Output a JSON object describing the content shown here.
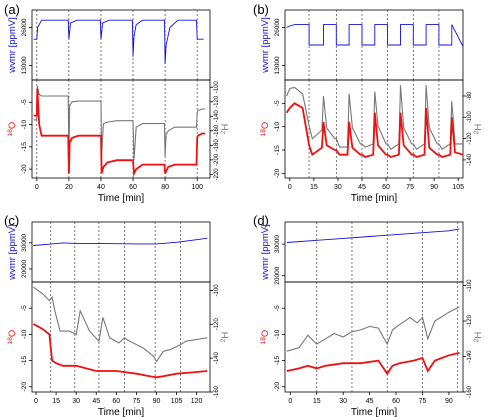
{
  "colors": {
    "wvmr": "#1010e0",
    "d18O": "#ee1010",
    "d2H": "#777777",
    "axis": "#000000",
    "dashed": "#444444"
  },
  "chart_data": [
    {
      "panel_label": "(a)",
      "type": "line",
      "xlabel": "Time [min]",
      "xlim": [
        -3,
        108
      ],
      "xticks": [
        0,
        20,
        40,
        60,
        80,
        100
      ],
      "xtick_labels": [
        "0",
        "20",
        "40",
        "60",
        "80",
        "100"
      ],
      "vlines": [
        0,
        20,
        40,
        60,
        80,
        100
      ],
      "top": {
        "ylabel": "wvmr [ppmV]",
        "ylim": [
          8000,
          32000
        ],
        "yticks": [
          13000,
          26000
        ],
        "ytick_labels": [
          "13000",
          "26000"
        ],
        "series": [
          {
            "x": [
              -2,
              0,
              0.5,
              3,
              8,
              19.6,
              20,
              21,
              25,
              39.6,
              40,
              41,
              45,
              59.6,
              60,
              60.6,
              62,
              66,
              79.6,
              80,
              80.6,
              83,
              88,
              99.6,
              100,
              104
            ],
            "y": [
              22000,
              22000,
              26000,
              28500,
              28500,
              28500,
              22000,
              27500,
              28500,
              28500,
              22000,
              27500,
              28500,
              28500,
              16000,
              23000,
              27000,
              28500,
              28500,
              13500,
              20000,
              26000,
              28500,
              28500,
              22000,
              22000
            ]
          }
        ]
      },
      "bottom": {
        "ylim": [
          -22,
          0
        ],
        "yticks": [
          -5,
          -10,
          -15,
          -20
        ],
        "ytick_labels": [
          "-5",
          "-10",
          "-15",
          "-20"
        ],
        "y2lim": [
          -225,
          -90
        ],
        "y2ticks": [
          -100,
          -120,
          -140,
          -160,
          -180,
          -200,
          -220
        ],
        "y2tick_labels": [
          "-100",
          "-120",
          "-140",
          "-160",
          "-180",
          "-200",
          "-220"
        ],
        "series": [
          {
            "name": "",
            "axis": "left",
            "color_key": "d18O",
            "x": [
              -2,
              0,
              0.3,
              1.5,
              3,
              6,
              19.6,
              20,
              20.5,
              22,
              26,
              39.6,
              40,
              40.4,
              41.5,
              44,
              50,
              59.6,
              60,
              60.6,
              62,
              66,
              79.6,
              80,
              80.6,
              82,
              86,
              99.6,
              100,
              100.5,
              103,
              105
            ],
            "y": [
              -8,
              -8,
              -2,
              -10,
              -12.5,
              -12.5,
              -12.5,
              -21,
              -14,
              -13,
              -12.5,
              -12.5,
              -12.5,
              -21,
              -19.5,
              -18.5,
              -18,
              -18,
              -18,
              -21,
              -20,
              -19,
              -19,
              -21,
              -20.5,
              -19.5,
              -19,
              -19,
              -13,
              -12.5,
              -12,
              -12
            ]
          },
          {
            "name": "",
            "axis": "right",
            "color_key": "d2H",
            "x": [
              -2,
              0,
              0.3,
              1.5,
              3,
              6,
              19.6,
              20,
              20.5,
              22,
              26,
              39.6,
              40,
              40.4,
              41.5,
              44,
              50,
              59.6,
              60,
              60.6,
              62,
              66,
              79.6,
              80,
              80.6,
              82,
              86,
              99.6,
              100,
              100.5,
              103,
              105
            ],
            "y": [
              -145,
              -145,
              -98,
              -110,
              -112,
              -112,
              -112,
              -200,
              -125,
              -120,
              -119,
              -119,
              -119,
              -195,
              -150,
              -148,
              -146,
              -146,
              -146,
              -200,
              -155,
              -150,
              -150,
              -195,
              -165,
              -160,
              -155,
              -155,
              -135,
              -132,
              -130,
              -130
            ]
          }
        ]
      }
    },
    {
      "panel_label": "(b)",
      "type": "line",
      "xlabel": "Time [min]",
      "xlim": [
        -3,
        108
      ],
      "xticks": [
        0,
        15,
        30,
        45,
        60,
        75,
        90,
        105
      ],
      "xtick_labels": [
        "0",
        "15",
        "30",
        "45",
        "60",
        "75",
        "90",
        "105"
      ],
      "vlines": [
        12,
        29,
        45,
        61,
        77,
        93
      ],
      "top": {
        "ylabel": "wvmr [ppmV]",
        "ylim": [
          8000,
          32000
        ],
        "yticks": [
          13000,
          26000
        ],
        "ytick_labels": [
          "13000",
          "26000"
        ],
        "series": [
          {
            "x": [
              -2,
              0,
              3,
              9,
              12,
              12,
              21,
              21,
              29,
              29,
              37,
              37,
              45,
              45,
              53,
              53,
              61,
              61,
              69,
              69,
              77,
              77,
              85,
              85,
              93,
              93,
              101,
              101,
              108
            ],
            "y": [
              26000,
              26500,
              27000,
              27000,
              27000,
              20000,
              20000,
              27000,
              27000,
              20000,
              20000,
              27000,
              27000,
              20000,
              20000,
              27000,
              27000,
              20000,
              20000,
              27000,
              27000,
              20000,
              20000,
              27000,
              27000,
              20000,
              20000,
              27000,
              19500
            ]
          }
        ]
      },
      "bottom": {
        "ylim": [
          -21,
          0
        ],
        "yticks": [
          -5,
          -10,
          -15,
          -20
        ],
        "ytick_labels": [
          "-5",
          "-10",
          "-15",
          "-20"
        ],
        "y2lim": [
          -157,
          -65
        ],
        "y2ticks": [
          -80,
          -100,
          -120,
          -140
        ],
        "y2tick_labels": [
          "-80",
          "-100",
          "-120",
          "-140"
        ],
        "series": [
          {
            "name": "",
            "axis": "left",
            "color_key": "d18O",
            "x": [
              -2,
              0,
              3,
              8,
              12,
              14,
              20,
              21,
              23,
              28,
              29,
              31,
              36,
              37,
              39,
              44,
              45,
              47,
              52,
              53,
              55,
              60,
              61,
              63,
              68,
              69,
              71,
              76,
              77,
              79,
              84,
              85,
              87,
              92,
              93,
              95,
              100,
              101,
              103,
              108
            ],
            "y": [
              -7,
              -6,
              -5,
              -6,
              -14,
              -16,
              -14.5,
              -9,
              -14,
              -15,
              -15,
              -16,
              -16,
              -9,
              -14.5,
              -16,
              -16,
              -16.5,
              -16,
              -7,
              -14,
              -16,
              -16,
              -16.5,
              -16,
              -7,
              -14,
              -16,
              -16,
              -16.5,
              -16,
              -6,
              -14.5,
              -16,
              -16,
              -16.5,
              -16,
              -8,
              -15.5,
              -16
            ]
          },
          {
            "name": "",
            "axis": "right",
            "color_key": "d2H",
            "x": [
              -2,
              0,
              3,
              8,
              12,
              14,
              20,
              21,
              23,
              28,
              29,
              31,
              36,
              37,
              39,
              44,
              45,
              47,
              52,
              53,
              55,
              60,
              61,
              63,
              68,
              69,
              71,
              76,
              77,
              79,
              84,
              85,
              87,
              92,
              93,
              95,
              100,
              101,
              103,
              108
            ],
            "y": [
              -80,
              -73,
              -72,
              -78,
              -108,
              -120,
              -112,
              -80,
              -110,
              -120,
              -120,
              -128,
              -128,
              -78,
              -110,
              -125,
              -125,
              -128,
              -125,
              -76,
              -108,
              -125,
              -125,
              -130,
              -125,
              -70,
              -110,
              -125,
              -125,
              -130,
              -125,
              -70,
              -110,
              -125,
              -125,
              -130,
              -125,
              -85,
              -125,
              -125
            ]
          }
        ]
      }
    },
    {
      "panel_label": "(c)",
      "type": "line",
      "xlabel": "Time [min]",
      "xlim": [
        -3,
        130
      ],
      "xticks": [
        0,
        15,
        30,
        45,
        60,
        75,
        90,
        105,
        120
      ],
      "xtick_labels": [
        "0",
        "15",
        "30",
        "45",
        "60",
        "75",
        "90",
        "105",
        "120"
      ],
      "vlines": [
        11,
        29,
        47,
        66,
        89,
        108
      ],
      "top": {
        "ylabel": "wvmr [ppmV]",
        "ylim": [
          15000,
          38000
        ],
        "yticks": [
          20000,
          30000
        ],
        "ytick_labels": [
          "20000",
          "30000"
        ],
        "series": [
          {
            "x": [
              -2,
              10,
              20,
              30,
              45,
              60,
              75,
              90,
              105,
              120,
              128
            ],
            "y": [
              29000,
              29500,
              30000,
              29800,
              29800,
              29700,
              29600,
              29600,
              30200,
              31200,
              31800
            ]
          }
        ]
      },
      "bottom": {
        "ylim": [
          -21,
          0
        ],
        "yticks": [
          -5,
          -10,
          -15,
          -20
        ],
        "ytick_labels": [
          "-5",
          "-10",
          "-15",
          "-20"
        ],
        "y2lim": [
          -160,
          -95
        ],
        "y2ticks": [
          -100,
          -120,
          -140,
          -160
        ],
        "y2tick_labels": [
          "-100",
          "-120",
          "-140",
          "-160"
        ],
        "series": [
          {
            "name": "",
            "axis": "left",
            "color_key": "d18O",
            "x": [
              -2,
              5,
              10,
              12,
              15,
              20,
              30,
              45,
              60,
              75,
              85,
              90,
              95,
              105,
              115,
              128
            ],
            "y": [
              -8,
              -9,
              -10,
              -15,
              -15.5,
              -16,
              -16,
              -17,
              -17,
              -17.5,
              -18,
              -18.2,
              -18,
              -17.5,
              -17.3,
              -17
            ]
          },
          {
            "name": "",
            "axis": "right",
            "color_key": "d2H",
            "x": [
              -2,
              5,
              10,
              12,
              14,
              18,
              25,
              30,
              33,
              40,
              47,
              50,
              55,
              62,
              66,
              70,
              80,
              88,
              90,
              95,
              100,
              108,
              112,
              120,
              128
            ],
            "y": [
              -98,
              -102,
              -106,
              -104,
              -112,
              -124,
              -124,
              -126,
              -112,
              -124,
              -130,
              -116,
              -128,
              -131,
              -128,
              -130,
              -134,
              -139,
              -142,
              -136,
              -135,
              -132,
              -130,
              -129,
              -128
            ]
          }
        ]
      }
    },
    {
      "panel_label": "(d)",
      "type": "line",
      "xlabel": "Time [min]",
      "xlim": [
        -3,
        98
      ],
      "xticks": [
        0,
        15,
        30,
        45,
        60,
        75,
        90
      ],
      "xtick_labels": [
        "0",
        "15",
        "30",
        "45",
        "60",
        "75",
        "90"
      ],
      "vlines": [
        15,
        35,
        55,
        75,
        95
      ],
      "top": {
        "ylabel": "wvmr [ppmV]",
        "ylim": [
          18000,
          37000
        ],
        "yticks": [
          20000,
          30000
        ],
        "ytick_labels": [
          "20000",
          "30000"
        ],
        "series": [
          {
            "x": [
              -2,
              15,
              30,
              45,
              60,
              75,
              90,
              96
            ],
            "y": [
              30500,
              31200,
              31800,
              32400,
              33000,
              33600,
              34200,
              34800
            ]
          }
        ]
      },
      "bottom": {
        "ylim": [
          -21,
          0
        ],
        "yticks": [
          -5,
          -10,
          -15,
          -20
        ],
        "ytick_labels": [
          "-5",
          "-10",
          "-15",
          "-20"
        ],
        "y2lim": [
          -160,
          -98
        ],
        "y2ticks": [
          -100,
          -120,
          -140,
          -160
        ],
        "y2tick_labels": [
          "-100",
          "-120",
          "-140",
          "-160"
        ],
        "series": [
          {
            "name": "",
            "axis": "left",
            "color_key": "d18O",
            "x": [
              -2,
              5,
              10,
              15,
              20,
              30,
              40,
              50,
              55,
              58,
              62,
              70,
              75,
              78,
              82,
              90,
              96
            ],
            "y": [
              -17,
              -16.5,
              -16,
              -16.5,
              -16,
              -15.5,
              -15.5,
              -15,
              -17.5,
              -16,
              -15.5,
              -15,
              -14.5,
              -17,
              -15,
              -14,
              -13.5
            ]
          },
          {
            "name": "",
            "axis": "right",
            "color_key": "d2H",
            "x": [
              -2,
              5,
              10,
              15,
              20,
              25,
              30,
              35,
              40,
              45,
              50,
              55,
              58,
              62,
              68,
              72,
              75,
              78,
              82,
              90,
              96
            ],
            "y": [
              -137,
              -135,
              -128,
              -133,
              -130,
              -127,
              -129,
              -126,
              -125,
              -123,
              -124,
              -133,
              -125,
              -122,
              -118,
              -121,
              -118,
              -130,
              -120,
              -115,
              -112
            ]
          }
        ]
      }
    }
  ]
}
